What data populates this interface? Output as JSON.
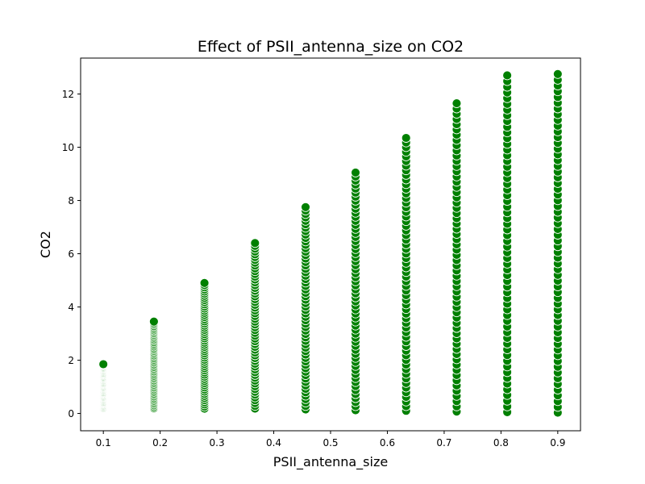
{
  "chart_data": {
    "type": "scatter",
    "title": "Effect of PSII_antenna_size on CO2",
    "xlabel": "PSII_antenna_size",
    "ylabel": "CO2",
    "xlim": [
      0.06,
      0.94
    ],
    "ylim": [
      -0.65,
      13.35
    ],
    "xticks": [
      "0.1",
      "0.2",
      "0.3",
      "0.4",
      "0.5",
      "0.6",
      "0.7",
      "0.8",
      "0.9"
    ],
    "yticks": [
      "0",
      "2",
      "4",
      "6",
      "8",
      "10",
      "12"
    ],
    "grid": false,
    "legend": "none",
    "marker_color": "#008000",
    "marker_edge": "#ffffff",
    "series": [
      {
        "x": 0.1,
        "y_min": 0.2,
        "y_max": 1.85
      },
      {
        "x": 0.189,
        "y_min": 0.2,
        "y_max": 3.45
      },
      {
        "x": 0.278,
        "y_min": 0.18,
        "y_max": 4.9
      },
      {
        "x": 0.367,
        "y_min": 0.18,
        "y_max": 6.4
      },
      {
        "x": 0.456,
        "y_min": 0.15,
        "y_max": 7.75
      },
      {
        "x": 0.544,
        "y_min": 0.12,
        "y_max": 9.05
      },
      {
        "x": 0.633,
        "y_min": 0.1,
        "y_max": 10.35
      },
      {
        "x": 0.722,
        "y_min": 0.07,
        "y_max": 11.65
      },
      {
        "x": 0.811,
        "y_min": 0.05,
        "y_max": 12.7
      },
      {
        "x": 0.9,
        "y_min": 0.03,
        "y_max": 12.75
      }
    ]
  }
}
